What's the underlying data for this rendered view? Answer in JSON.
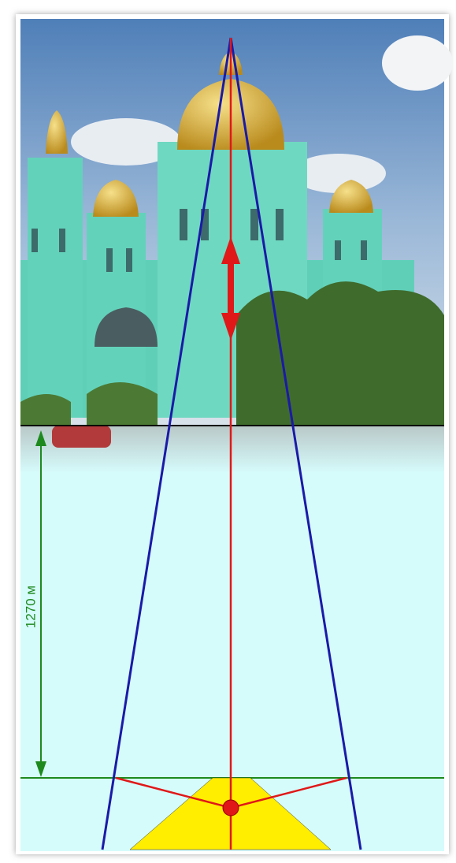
{
  "distance_label": "1270 м"
}
